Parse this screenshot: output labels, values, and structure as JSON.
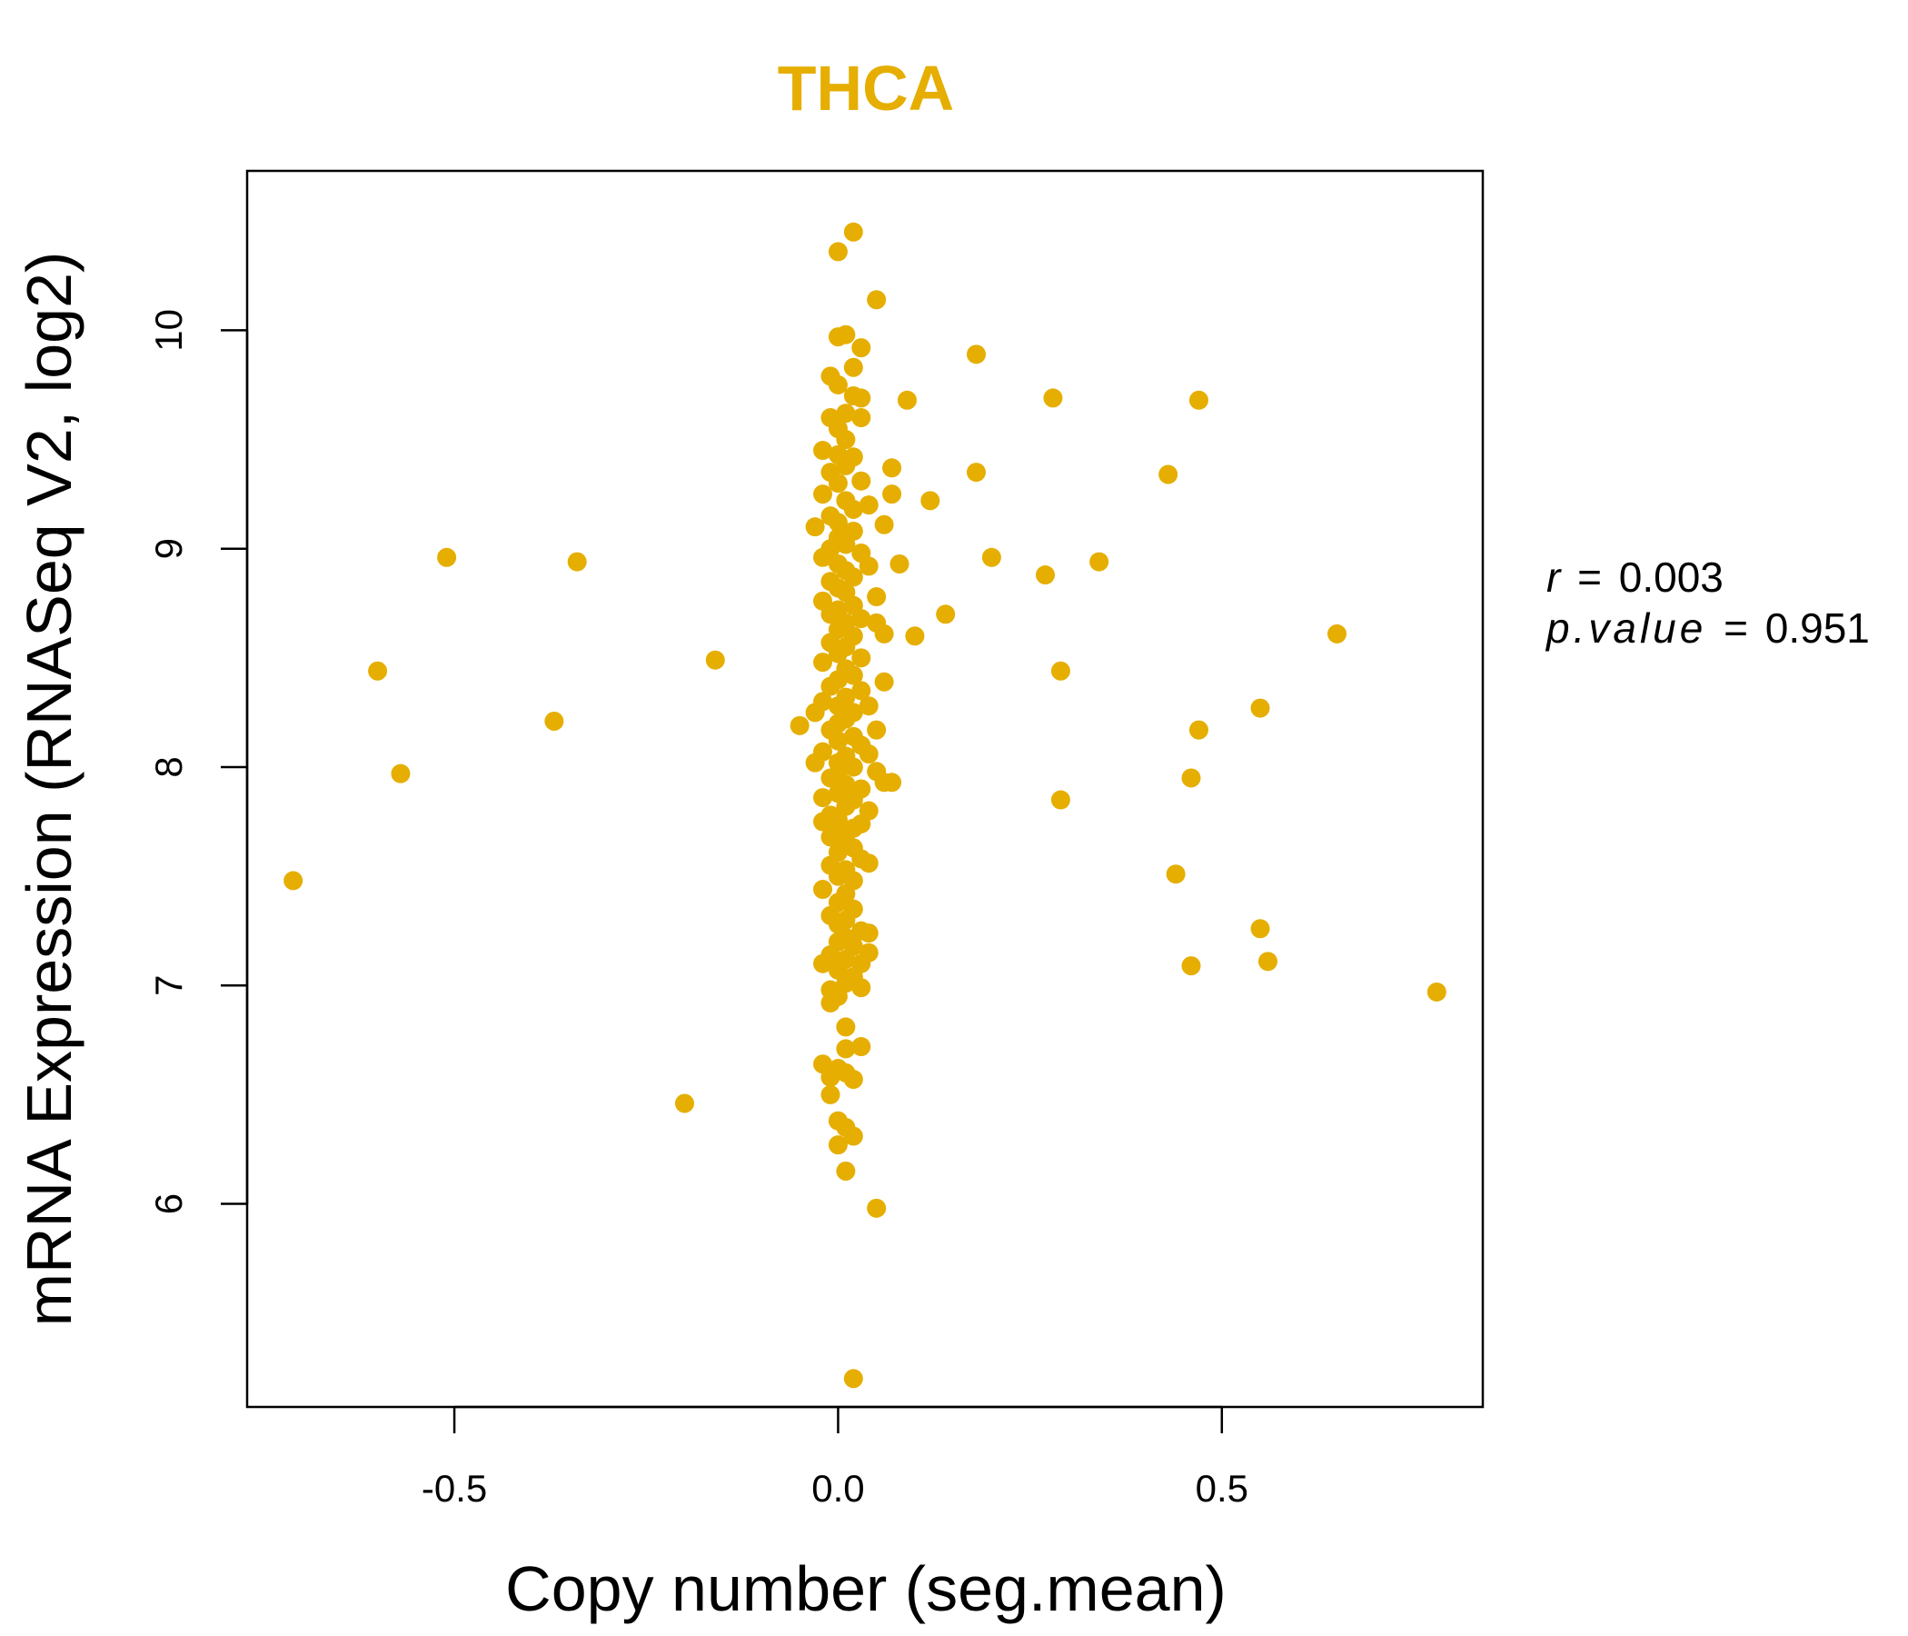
{
  "chart_data": {
    "type": "scatter",
    "title": "THCA",
    "title_color": "#E5AE00",
    "point_color": "#E5AE00",
    "xlabel": "Copy number (seg.mean)",
    "ylabel": "mRNA Expression (RNASeq V2, log2)",
    "xlim": [
      -0.77,
      0.84
    ],
    "ylim": [
      5.07,
      10.73
    ],
    "xticks": [
      -0.5,
      0.0,
      0.5
    ],
    "xtick_labels": [
      "-0.5",
      "0.0",
      "0.5"
    ],
    "yticks": [
      6,
      7,
      8,
      9,
      10
    ],
    "ytick_labels": [
      "6",
      "7",
      "8",
      "9",
      "10"
    ],
    "grid": false,
    "legend": "none",
    "stats": {
      "r_label": "r",
      "r_value": "0.003",
      "p_label": "p.value",
      "p_value": "0.951"
    },
    "points": [
      [
        -0.71,
        7.48
      ],
      [
        -0.6,
        8.44
      ],
      [
        -0.57,
        7.97
      ],
      [
        -0.51,
        8.96
      ],
      [
        -0.37,
        8.21
      ],
      [
        -0.34,
        8.94
      ],
      [
        -0.2,
        6.46
      ],
      [
        -0.16,
        8.49
      ],
      [
        -0.05,
        8.19
      ],
      [
        0.09,
        9.68
      ],
      [
        0.18,
        9.89
      ],
      [
        0.18,
        9.35
      ],
      [
        0.2,
        8.96
      ],
      [
        0.28,
        9.69
      ],
      [
        0.27,
        8.88
      ],
      [
        0.29,
        8.44
      ],
      [
        0.29,
        7.85
      ],
      [
        0.34,
        8.94
      ],
      [
        0.43,
        9.34
      ],
      [
        0.47,
        9.68
      ],
      [
        0.14,
        8.7
      ],
      [
        0.12,
        9.22
      ],
      [
        0.1,
        8.6
      ],
      [
        0.08,
        8.93
      ],
      [
        0.07,
        9.37
      ],
      [
        0.07,
        9.25
      ],
      [
        0.47,
        8.17
      ],
      [
        0.46,
        7.95
      ],
      [
        0.44,
        7.51
      ],
      [
        0.46,
        7.09
      ],
      [
        0.55,
        8.27
      ],
      [
        0.55,
        7.26
      ],
      [
        0.56,
        7.11
      ],
      [
        0.65,
        8.61
      ],
      [
        0.78,
        6.97
      ],
      [
        0.02,
        10.45
      ],
      [
        0.0,
        10.36
      ],
      [
        0.05,
        10.14
      ],
      [
        0.0,
        9.97
      ],
      [
        0.01,
        9.98
      ],
      [
        0.03,
        9.92
      ],
      [
        0.02,
        9.83
      ],
      [
        -0.01,
        9.79
      ],
      [
        0.0,
        9.75
      ],
      [
        0.02,
        9.7
      ],
      [
        0.03,
        9.69
      ],
      [
        0.01,
        9.62
      ],
      [
        -0.01,
        9.6
      ],
      [
        0.03,
        9.6
      ],
      [
        0.0,
        9.55
      ],
      [
        0.01,
        9.5
      ],
      [
        -0.02,
        9.45
      ],
      [
        0.0,
        9.43
      ],
      [
        0.02,
        9.42
      ],
      [
        0.01,
        9.38
      ],
      [
        -0.01,
        9.35
      ],
      [
        0.03,
        9.31
      ],
      [
        0.0,
        9.3
      ],
      [
        -0.02,
        9.25
      ],
      [
        0.01,
        9.22
      ],
      [
        0.04,
        9.2
      ],
      [
        0.02,
        9.18
      ],
      [
        -0.01,
        9.15
      ],
      [
        0.0,
        9.12
      ],
      [
        0.06,
        9.11
      ],
      [
        -0.03,
        9.1
      ],
      [
        0.02,
        9.08
      ],
      [
        0.0,
        9.05
      ],
      [
        0.01,
        9.02
      ],
      [
        -0.01,
        9.0
      ],
      [
        0.03,
        8.98
      ],
      [
        -0.02,
        8.96
      ],
      [
        0.0,
        8.93
      ],
      [
        0.04,
        8.92
      ],
      [
        0.01,
        8.9
      ],
      [
        0.02,
        8.87
      ],
      [
        -0.01,
        8.85
      ],
      [
        0.0,
        8.82
      ],
      [
        0.01,
        8.8
      ],
      [
        0.05,
        8.78
      ],
      [
        -0.02,
        8.76
      ],
      [
        0.02,
        8.74
      ],
      [
        0.0,
        8.72
      ],
      [
        -0.01,
        8.7
      ],
      [
        0.03,
        8.68
      ],
      [
        0.01,
        8.66
      ],
      [
        0.05,
        8.66
      ],
      [
        0.06,
        8.61
      ],
      [
        0.0,
        8.63
      ],
      [
        0.02,
        8.6
      ],
      [
        -0.01,
        8.57
      ],
      [
        0.01,
        8.55
      ],
      [
        0.0,
        8.52
      ],
      [
        0.03,
        8.5
      ],
      [
        -0.02,
        8.48
      ],
      [
        0.01,
        8.45
      ],
      [
        0.02,
        8.42
      ],
      [
        0.06,
        8.39
      ],
      [
        0.0,
        8.4
      ],
      [
        -0.01,
        8.37
      ],
      [
        0.03,
        8.35
      ],
      [
        0.01,
        8.32
      ],
      [
        -0.02,
        8.3
      ],
      [
        0.0,
        8.28
      ],
      [
        0.04,
        8.28
      ],
      [
        0.02,
        8.25
      ],
      [
        -0.03,
        8.25
      ],
      [
        0.01,
        8.22
      ],
      [
        0.0,
        8.2
      ],
      [
        -0.01,
        8.17
      ],
      [
        0.05,
        8.17
      ],
      [
        0.02,
        8.14
      ],
      [
        0.0,
        8.12
      ],
      [
        0.03,
        8.1
      ],
      [
        -0.02,
        8.07
      ],
      [
        0.04,
        8.06
      ],
      [
        0.01,
        8.05
      ],
      [
        -0.03,
        8.02
      ],
      [
        0.0,
        8.02
      ],
      [
        0.02,
        8.0
      ],
      [
        0.05,
        7.98
      ],
      [
        0.06,
        7.93
      ],
      [
        0.07,
        7.93
      ],
      [
        0.0,
        7.97
      ],
      [
        -0.01,
        7.95
      ],
      [
        0.01,
        7.92
      ],
      [
        0.03,
        7.9
      ],
      [
        0.0,
        7.88
      ],
      [
        -0.02,
        7.86
      ],
      [
        0.02,
        7.85
      ],
      [
        0.01,
        7.82
      ],
      [
        0.04,
        7.8
      ],
      [
        -0.01,
        7.78
      ],
      [
        0.0,
        7.76
      ],
      [
        -0.02,
        7.75
      ],
      [
        0.03,
        7.74
      ],
      [
        0.02,
        7.72
      ],
      [
        0.0,
        7.7
      ],
      [
        -0.01,
        7.68
      ],
      [
        0.01,
        7.66
      ],
      [
        0.02,
        7.63
      ],
      [
        0.0,
        7.61
      ],
      [
        0.03,
        7.58
      ],
      [
        0.04,
        7.56
      ],
      [
        -0.01,
        7.55
      ],
      [
        0.01,
        7.53
      ],
      [
        0.0,
        7.5
      ],
      [
        0.02,
        7.48
      ],
      [
        -0.02,
        7.44
      ],
      [
        0.01,
        7.42
      ],
      [
        0.0,
        7.38
      ],
      [
        0.02,
        7.35
      ],
      [
        -0.01,
        7.32
      ],
      [
        0.01,
        7.3
      ],
      [
        0.0,
        7.28
      ],
      [
        0.03,
        7.25
      ],
      [
        0.04,
        7.24
      ],
      [
        0.01,
        7.22
      ],
      [
        0.0,
        7.2
      ],
      [
        0.02,
        7.18
      ],
      [
        0.04,
        7.15
      ],
      [
        -0.01,
        7.14
      ],
      [
        0.01,
        7.12
      ],
      [
        -0.02,
        7.1
      ],
      [
        0.03,
        7.1
      ],
      [
        0.0,
        7.07
      ],
      [
        0.02,
        7.04
      ],
      [
        0.01,
        7.01
      ],
      [
        -0.01,
        6.98
      ],
      [
        0.03,
        6.99
      ],
      [
        0.0,
        6.95
      ],
      [
        -0.01,
        6.92
      ],
      [
        0.01,
        6.81
      ],
      [
        0.03,
        6.72
      ],
      [
        0.01,
        6.71
      ],
      [
        -0.02,
        6.64
      ],
      [
        0.0,
        6.62
      ],
      [
        0.01,
        6.6
      ],
      [
        -0.01,
        6.58
      ],
      [
        0.02,
        6.57
      ],
      [
        -0.01,
        6.5
      ],
      [
        0.0,
        6.38
      ],
      [
        0.01,
        6.35
      ],
      [
        0.02,
        6.31
      ],
      [
        0.0,
        6.27
      ],
      [
        0.01,
        6.15
      ],
      [
        0.05,
        5.98
      ],
      [
        0.02,
        5.2
      ]
    ]
  }
}
